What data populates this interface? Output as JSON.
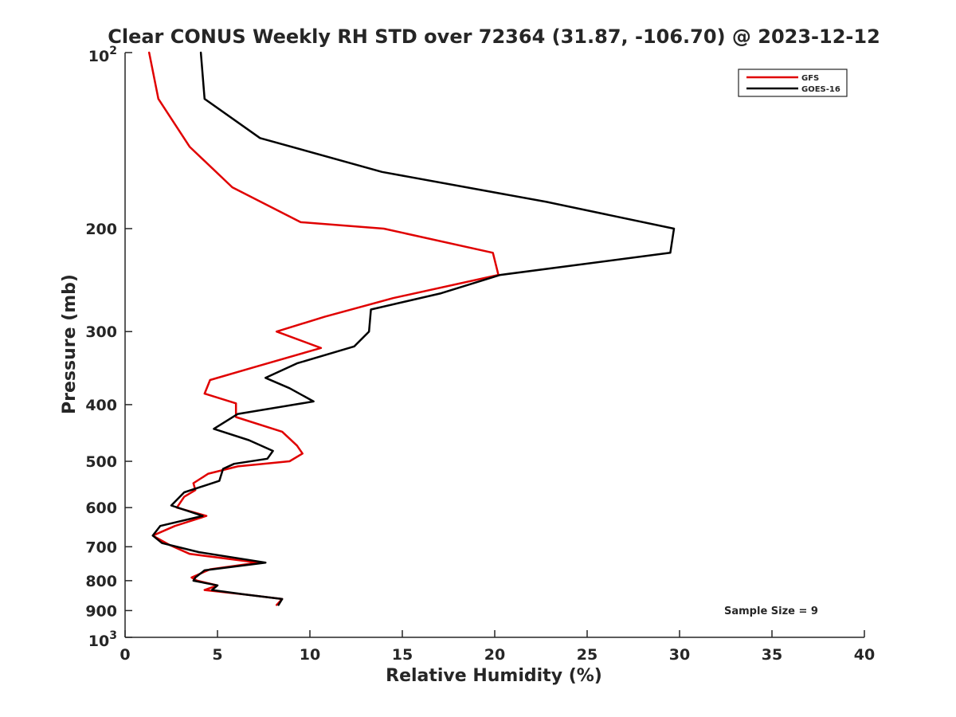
{
  "chart_data": {
    "type": "line",
    "title": "Clear CONUS Weekly RH STD over 72364 (31.87, -106.70) @ 2023-12-12",
    "xlabel": "Relative Humidity (%)",
    "ylabel": "Pressure (mb)",
    "xlim": [
      0,
      40
    ],
    "ylim": [
      100,
      1000
    ],
    "yscale": "log",
    "y_reversed": true,
    "grid": false,
    "x_ticks": [
      0,
      5,
      10,
      15,
      20,
      25,
      30,
      35,
      40
    ],
    "x_tick_labels": [
      "0",
      "5",
      "10",
      "15",
      "20",
      "25",
      "30",
      "35",
      "40"
    ],
    "y_ticks": [
      100,
      200,
      300,
      400,
      500,
      600,
      700,
      800,
      900,
      1000
    ],
    "y_tick_labels": [
      {
        "base": "10",
        "exp": "2"
      },
      {
        "base": "200"
      },
      {
        "base": "300"
      },
      {
        "base": "400"
      },
      {
        "base": "500"
      },
      {
        "base": "600"
      },
      {
        "base": "700"
      },
      {
        "base": "800"
      },
      {
        "base": "900"
      },
      {
        "base": "10",
        "exp": "3"
      }
    ],
    "legend_position": "top-right",
    "series": [
      {
        "name": "GFS",
        "color": "#e00000",
        "points": [
          [
            1.3,
            100
          ],
          [
            1.8,
            120
          ],
          [
            3.5,
            145
          ],
          [
            5.8,
            170
          ],
          [
            9.5,
            195
          ],
          [
            14.0,
            200
          ],
          [
            19.9,
            220
          ],
          [
            20.2,
            240
          ],
          [
            14.5,
            263
          ],
          [
            10.8,
            283
          ],
          [
            8.2,
            300
          ],
          [
            10.6,
            320
          ],
          [
            7.0,
            345
          ],
          [
            4.6,
            363
          ],
          [
            4.3,
            383
          ],
          [
            6.0,
            398
          ],
          [
            6.0,
            420
          ],
          [
            8.5,
            445
          ],
          [
            9.3,
            470
          ],
          [
            9.6,
            485
          ],
          [
            8.9,
            500
          ],
          [
            6.1,
            510
          ],
          [
            4.5,
            525
          ],
          [
            3.7,
            545
          ],
          [
            3.8,
            560
          ],
          [
            3.2,
            575
          ],
          [
            2.8,
            600
          ],
          [
            4.4,
            620
          ],
          [
            2.7,
            645
          ],
          [
            1.5,
            670
          ],
          [
            2.4,
            695
          ],
          [
            3.5,
            720
          ],
          [
            7.2,
            745
          ],
          [
            4.6,
            765
          ],
          [
            3.6,
            790
          ],
          [
            3.9,
            800
          ],
          [
            5.0,
            815
          ],
          [
            4.3,
            830
          ],
          [
            6.5,
            845
          ],
          [
            8.5,
            860
          ],
          [
            8.2,
            880
          ]
        ]
      },
      {
        "name": "GOES-16",
        "color": "#000000",
        "points": [
          [
            4.1,
            100
          ],
          [
            4.3,
            120
          ],
          [
            7.3,
            140
          ],
          [
            13.9,
            160
          ],
          [
            22.8,
            180
          ],
          [
            29.7,
            200
          ],
          [
            29.5,
            220
          ],
          [
            20.3,
            240
          ],
          [
            17.1,
            258
          ],
          [
            13.3,
            275
          ],
          [
            13.2,
            300
          ],
          [
            12.4,
            318
          ],
          [
            9.3,
            340
          ],
          [
            7.6,
            360
          ],
          [
            8.9,
            375
          ],
          [
            10.2,
            395
          ],
          [
            6.1,
            415
          ],
          [
            4.8,
            440
          ],
          [
            6.7,
            460
          ],
          [
            8.0,
            480
          ],
          [
            7.7,
            495
          ],
          [
            5.9,
            505
          ],
          [
            5.3,
            515
          ],
          [
            5.1,
            540
          ],
          [
            3.2,
            565
          ],
          [
            2.5,
            595
          ],
          [
            4.2,
            620
          ],
          [
            1.9,
            645
          ],
          [
            1.5,
            670
          ],
          [
            2.0,
            690
          ],
          [
            4.0,
            715
          ],
          [
            7.6,
            745
          ],
          [
            4.3,
            768
          ],
          [
            3.8,
            790
          ],
          [
            3.7,
            800
          ],
          [
            5.0,
            815
          ],
          [
            4.7,
            830
          ],
          [
            6.5,
            845
          ],
          [
            8.5,
            860
          ],
          [
            8.3,
            880
          ]
        ]
      }
    ],
    "annotations": [
      "Sample Size = 9"
    ]
  }
}
